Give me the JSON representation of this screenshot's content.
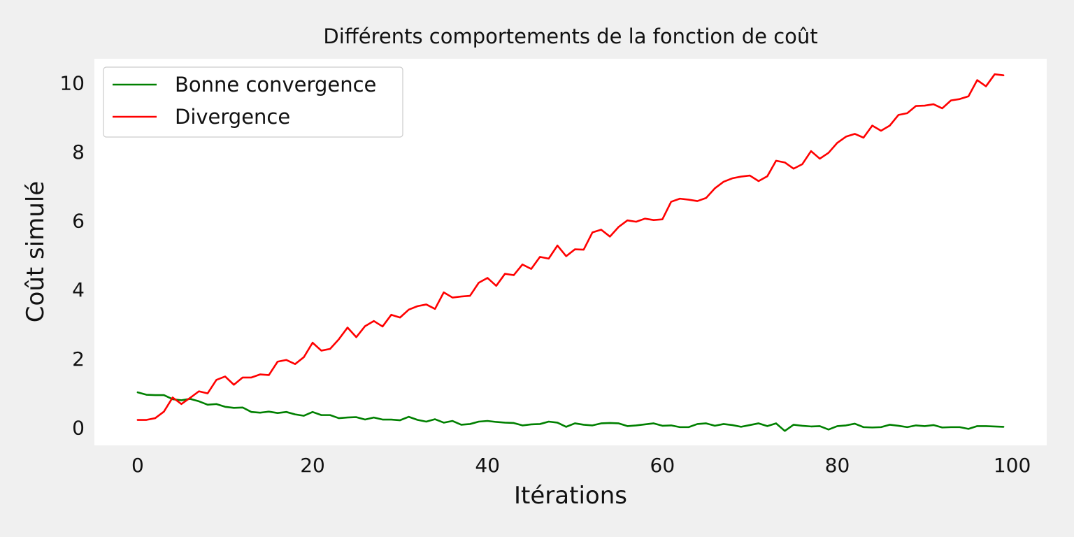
{
  "chart_data": {
    "type": "line",
    "title": "Différents comportements de la fonction de coût",
    "xlabel": "Itérations",
    "ylabel": "Coût simulé",
    "xlim": [
      -4.95,
      103.95
    ],
    "ylim": [
      -0.52,
      10.7
    ],
    "xticks": [
      0,
      20,
      40,
      60,
      80,
      100
    ],
    "yticks": [
      0,
      2,
      4,
      6,
      8,
      10
    ],
    "grid": false,
    "legend_position": "top-left",
    "x": [
      0,
      1,
      2,
      3,
      4,
      5,
      6,
      7,
      8,
      9,
      10,
      11,
      12,
      13,
      14,
      15,
      16,
      17,
      18,
      19,
      20,
      21,
      22,
      23,
      24,
      25,
      26,
      27,
      28,
      29,
      30,
      31,
      32,
      33,
      34,
      35,
      36,
      37,
      38,
      39,
      40,
      41,
      42,
      43,
      44,
      45,
      46,
      47,
      48,
      49,
      50,
      51,
      52,
      53,
      54,
      55,
      56,
      57,
      58,
      59,
      60,
      61,
      62,
      63,
      64,
      65,
      66,
      67,
      68,
      69,
      70,
      71,
      72,
      73,
      74,
      75,
      76,
      77,
      78,
      79,
      80,
      81,
      82,
      83,
      84,
      85,
      86,
      87,
      88,
      89,
      90,
      91,
      92,
      93,
      94,
      95,
      96,
      97,
      98,
      99
    ],
    "series": [
      {
        "name": "Bonne convergence",
        "color": "#008000",
        "values": [
          1.02,
          0.95,
          0.94,
          0.94,
          0.82,
          0.79,
          0.83,
          0.76,
          0.66,
          0.68,
          0.6,
          0.57,
          0.58,
          0.45,
          0.43,
          0.46,
          0.42,
          0.45,
          0.38,
          0.34,
          0.45,
          0.36,
          0.36,
          0.27,
          0.29,
          0.3,
          0.23,
          0.29,
          0.23,
          0.23,
          0.21,
          0.31,
          0.22,
          0.17,
          0.24,
          0.14,
          0.19,
          0.08,
          0.1,
          0.17,
          0.19,
          0.16,
          0.14,
          0.13,
          0.06,
          0.09,
          0.1,
          0.17,
          0.14,
          0.02,
          0.12,
          0.08,
          0.06,
          0.12,
          0.13,
          0.12,
          0.04,
          0.06,
          0.09,
          0.12,
          0.05,
          0.06,
          0.01,
          0.01,
          0.1,
          0.12,
          0.05,
          0.1,
          0.07,
          0.02,
          0.07,
          0.12,
          0.04,
          0.12,
          -0.1,
          0.08,
          0.05,
          0.03,
          0.04,
          -0.06,
          0.04,
          0.06,
          0.11,
          0.01,
          0.0,
          0.01,
          0.08,
          0.05,
          0.01,
          0.06,
          0.04,
          0.07,
          0.0,
          0.01,
          0.01,
          -0.04,
          0.04,
          0.04,
          0.03,
          0.02
        ]
      },
      {
        "name": "Divergence",
        "color": "#ff0000",
        "values": [
          0.22,
          0.22,
          0.27,
          0.46,
          0.87,
          0.68,
          0.86,
          1.05,
          0.99,
          1.38,
          1.48,
          1.24,
          1.45,
          1.45,
          1.54,
          1.52,
          1.91,
          1.96,
          1.84,
          2.04,
          2.46,
          2.23,
          2.28,
          2.56,
          2.9,
          2.62,
          2.94,
          3.09,
          2.93,
          3.27,
          3.19,
          3.42,
          3.52,
          3.57,
          3.44,
          3.92,
          3.77,
          3.8,
          3.82,
          4.2,
          4.34,
          4.11,
          4.46,
          4.42,
          4.73,
          4.6,
          4.95,
          4.9,
          5.28,
          4.97,
          5.17,
          5.16,
          5.66,
          5.74,
          5.54,
          5.82,
          6.01,
          5.97,
          6.06,
          6.02,
          6.04,
          6.55,
          6.64,
          6.61,
          6.57,
          6.66,
          6.94,
          7.13,
          7.23,
          7.28,
          7.31,
          7.15,
          7.29,
          7.74,
          7.69,
          7.51,
          7.64,
          8.02,
          7.8,
          7.97,
          8.26,
          8.44,
          8.52,
          8.41,
          8.76,
          8.61,
          8.76,
          9.07,
          9.12,
          9.33,
          9.34,
          9.38,
          9.26,
          9.49,
          9.53,
          9.61,
          10.08,
          9.9,
          10.25,
          10.22
        ]
      }
    ]
  }
}
